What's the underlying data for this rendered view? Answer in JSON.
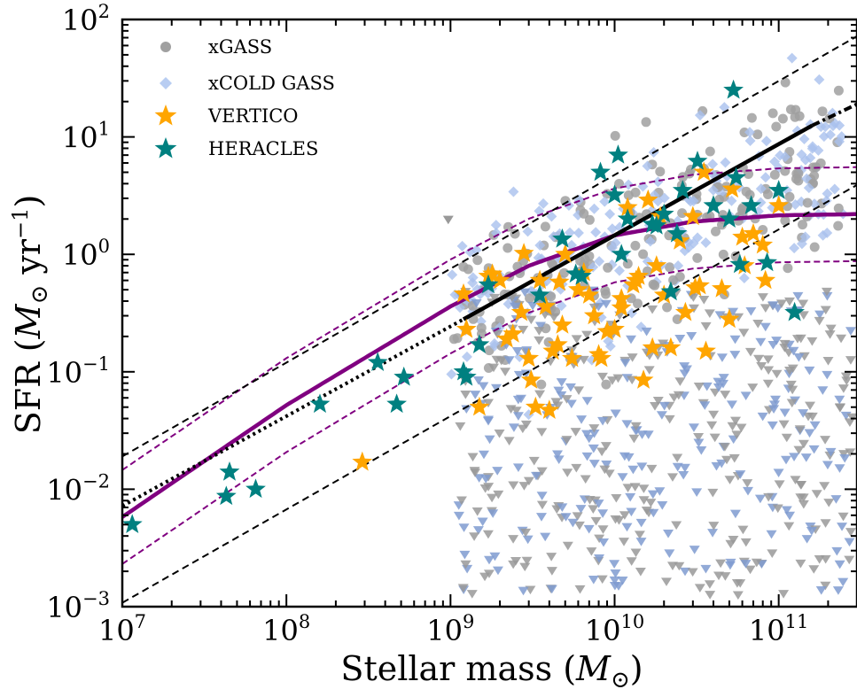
{
  "chart_data": {
    "type": "scatter",
    "x_scale": "log",
    "y_scale": "log",
    "xlim": [
      10000000.0,
      300000000000.0
    ],
    "ylim": [
      0.001,
      100
    ],
    "xlabel": {
      "base": "Stellar mass (",
      "sym": "M",
      "sub": "⊙",
      "tail": ")"
    },
    "ylabel": {
      "base": "SFR (",
      "sym": "M",
      "sub": "⊙",
      "unit": " yr",
      "sup": "−1",
      "tail": ")"
    },
    "x_ticks": [
      {
        "value": 10000000.0,
        "base": "10",
        "exp": "7"
      },
      {
        "value": 100000000.0,
        "base": "10",
        "exp": "8"
      },
      {
        "value": 1000000000.0,
        "base": "10",
        "exp": "9"
      },
      {
        "value": 10000000000.0,
        "base": "10",
        "exp": "10"
      },
      {
        "value": 100000000000.0,
        "base": "10",
        "exp": "11"
      }
    ],
    "y_ticks": [
      {
        "value": 0.001,
        "base": "10",
        "exp": "−3"
      },
      {
        "value": 0.01,
        "base": "10",
        "exp": "−2"
      },
      {
        "value": 0.1,
        "base": "10",
        "exp": "−1"
      },
      {
        "value": 1.0,
        "base": "10",
        "exp": "0"
      },
      {
        "value": 10.0,
        "base": "10",
        "exp": "1"
      },
      {
        "value": 100.0,
        "base": "10",
        "exp": "2"
      }
    ],
    "grid": false,
    "legend_position": "upper-left",
    "legend": [
      {
        "label": "xGASS",
        "marker": "circle",
        "color": "#a0a0a0"
      },
      {
        "label": "xCOLD GASS",
        "marker": "diamond",
        "color": "#b8cdf2"
      },
      {
        "label": "VERTICO",
        "marker": "star",
        "color": "#ffa500"
      },
      {
        "label": "HERACLES",
        "marker": "star",
        "color": "#008080"
      }
    ],
    "colors": {
      "xgass": "#a0a0a0",
      "xcoldgass": "#a9c1ee",
      "upper_limit_grey": "#999999",
      "upper_limit_blue": "#7f9bd0",
      "vertico": "#ffa500",
      "heracles": "#008080",
      "main_sequence": "#800080"
    },
    "lines": [
      {
        "name": "linear-relation",
        "style": "solid",
        "color": "#000000",
        "points": [
          [
            1200000000.0,
            0.28
          ],
          [
            160000000000.0,
            12.5
          ]
        ]
      },
      {
        "name": "linear-relation-extrapolated-high",
        "style": "dashdot",
        "color": "#000000",
        "points": [
          [
            160000000000.0,
            12.5
          ],
          [
            300000000000.0,
            19
          ]
        ]
      },
      {
        "name": "linear-relation-extrapolated-low",
        "style": "dotted",
        "color": "#000000",
        "points": [
          [
            10000000.0,
            0.0072
          ],
          [
            1200000000.0,
            0.28
          ]
        ]
      },
      {
        "name": "upper-dashed-black",
        "style": "dashed",
        "color": "#000000",
        "points": [
          [
            10000000.0,
            0.019
          ],
          [
            300000000000.0,
            72
          ]
        ]
      },
      {
        "name": "lower-dashed-black",
        "style": "dashed",
        "color": "#000000",
        "points": [
          [
            10000000.0,
            0.00108
          ],
          [
            300000000000.0,
            3.9
          ]
        ]
      }
    ],
    "main_sequence_curve": [
      [
        10000000.0,
        0.0058
      ],
      [
        100000000.0,
        0.052
      ],
      [
        1000000000.0,
        0.36
      ],
      [
        3000000000.0,
        0.8
      ],
      [
        10000000000.0,
        1.45
      ],
      [
        30000000000.0,
        1.9
      ],
      [
        100000000000.0,
        2.15
      ],
      [
        300000000000.0,
        2.2
      ]
    ],
    "main_sequence_scatter": 0.4,
    "vertico": [
      [
        1200000000.0,
        0.46
      ],
      [
        1250000000.0,
        0.23
      ],
      [
        1800000000.0,
        0.68
      ],
      [
        2000000000.0,
        0.6
      ],
      [
        2200000000.0,
        0.19
      ],
      [
        2400000000.0,
        0.21
      ],
      [
        2700000000.0,
        0.32
      ],
      [
        2800000000.0,
        1.02
      ],
      [
        3000000000.0,
        0.13
      ],
      [
        3100000000.0,
        0.085
      ],
      [
        3300000000.0,
        0.05
      ],
      [
        3500000000.0,
        0.6
      ],
      [
        3800000000.0,
        0.36
      ],
      [
        4000000000.0,
        0.047
      ],
      [
        4200000000.0,
        0.15
      ],
      [
        4500000000.0,
        0.17
      ],
      [
        4600000000.0,
        0.58
      ],
      [
        4800000000.0,
        0.25
      ],
      [
        5000000000.0,
        1.0
      ],
      [
        5500000000.0,
        0.13
      ],
      [
        6000000000.0,
        0.5
      ],
      [
        6500000000.0,
        0.7
      ],
      [
        7000000000.0,
        0.45
      ],
      [
        7500000000.0,
        0.3
      ],
      [
        8000000000.0,
        0.14
      ],
      [
        8300000000.0,
        0.13
      ],
      [
        9000000000.0,
        0.22
      ],
      [
        10000000000.0,
        0.23
      ],
      [
        11000000000.0,
        0.35
      ],
      [
        11000000000.0,
        0.42
      ],
      [
        12000000000.0,
        2.5
      ],
      [
        13000000000.0,
        0.55
      ],
      [
        13500000000.0,
        0.6
      ],
      [
        14000000000.0,
        0.65
      ],
      [
        15000000000.0,
        0.085
      ],
      [
        16000000000.0,
        2.9
      ],
      [
        17000000000.0,
        0.16
      ],
      [
        18000000000.0,
        0.8
      ],
      [
        19000000000.0,
        2.1
      ],
      [
        20000000000.0,
        0.45
      ],
      [
        22000000000.0,
        0.16
      ],
      [
        25000000000.0,
        1.3
      ],
      [
        27000000000.0,
        0.32
      ],
      [
        30000000000.0,
        2.1
      ],
      [
        31000000000.0,
        0.52
      ],
      [
        33000000000.0,
        0.54
      ],
      [
        35000000000.0,
        5.0
      ],
      [
        36000000000.0,
        0.15
      ],
      [
        45000000000.0,
        0.51
      ],
      [
        50000000000.0,
        0.28
      ],
      [
        52000000000.0,
        3.6
      ],
      [
        60000000000.0,
        1.4
      ],
      [
        62000000000.0,
        0.8
      ],
      [
        70000000000.0,
        1.5
      ],
      [
        80000000000.0,
        1.2
      ],
      [
        83000000000.0,
        0.6
      ],
      [
        100000000000.0,
        2.6
      ],
      [
        1500000000.0,
        0.05
      ],
      [
        290000000.0,
        0.017
      ],
      [
        1700000000.0,
        0.65
      ]
    ],
    "heracles": [
      [
        11500000.0,
        0.005
      ],
      [
        43000000.0,
        0.0087
      ],
      [
        45000000.0,
        0.014
      ],
      [
        65000000.0,
        0.01
      ],
      [
        160000000.0,
        0.053
      ],
      [
        360000000.0,
        0.12
      ],
      [
        470000000.0,
        0.053
      ],
      [
        520000000.0,
        0.09
      ],
      [
        1200000000.0,
        0.1
      ],
      [
        1250000000.0,
        0.09
      ],
      [
        1500000000.0,
        0.17
      ],
      [
        1700000000.0,
        0.55
      ],
      [
        3500000000.0,
        0.45
      ],
      [
        4800000000.0,
        1.35
      ],
      [
        5800000000.0,
        0.68
      ],
      [
        6300000000.0,
        0.65
      ],
      [
        8200000000.0,
        5.0
      ],
      [
        10000000000.0,
        3.2
      ],
      [
        10500000000.0,
        7.0
      ],
      [
        11000000000.0,
        1.0
      ],
      [
        12000000000.0,
        2.0
      ],
      [
        18000000000.0,
        1.75
      ],
      [
        20000000000.0,
        2.2
      ],
      [
        22000000000.0,
        0.48
      ],
      [
        24000000000.0,
        1.5
      ],
      [
        26000000000.0,
        3.5
      ],
      [
        32000000000.0,
        6.2
      ],
      [
        40000000000.0,
        2.6
      ],
      [
        50000000000.0,
        2.0
      ],
      [
        53000000000.0,
        25
      ],
      [
        55000000000.0,
        4.5
      ],
      [
        58000000000.0,
        0.82
      ],
      [
        68000000000.0,
        2.6
      ],
      [
        85000000000.0,
        0.85
      ],
      [
        100000000000.0,
        3.5
      ],
      [
        125000000000.0,
        0.32
      ],
      [
        17000000000.0,
        1.8
      ]
    ]
  }
}
